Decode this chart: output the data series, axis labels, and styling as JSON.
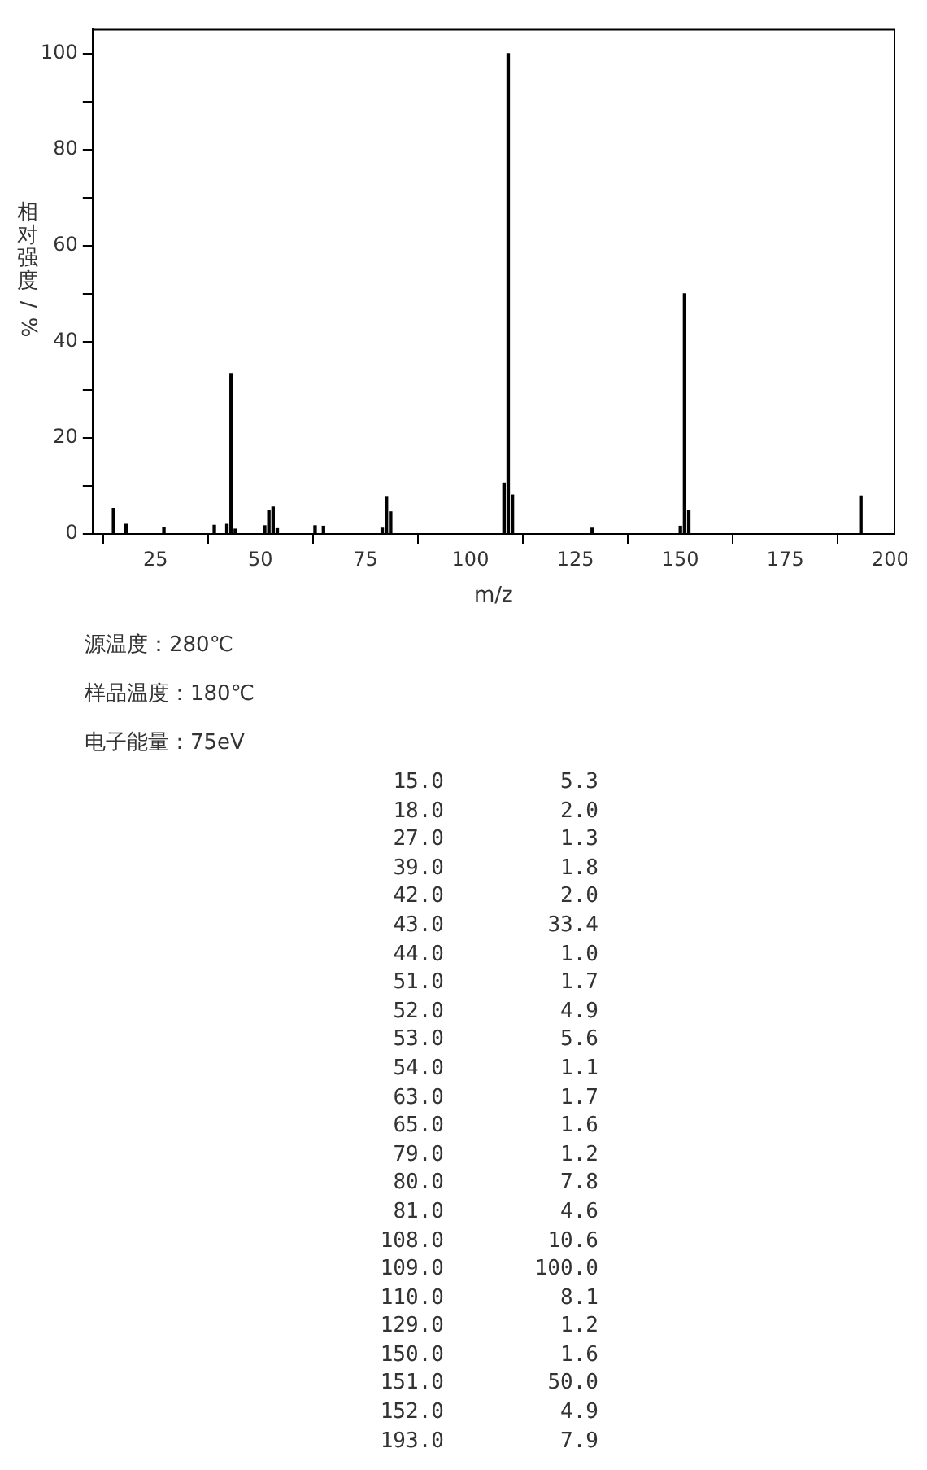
{
  "chart_data": [
    {
      "type": "bar",
      "xlabel": "m/z",
      "ylabel": "相对强度/%",
      "x": [
        15,
        18,
        27,
        39,
        42,
        43,
        44,
        51,
        52,
        53,
        54,
        63,
        65,
        79,
        80,
        81,
        108,
        109,
        110,
        129,
        150,
        151,
        152,
        193
      ],
      "values": [
        5.3,
        2.0,
        1.3,
        1.8,
        2.0,
        33.4,
        1.0,
        1.7,
        4.9,
        5.6,
        1.1,
        1.7,
        1.6,
        1.2,
        7.8,
        4.6,
        10.6,
        100.0,
        8.1,
        1.2,
        1.6,
        50.0,
        4.9,
        7.9
      ],
      "color": "#000000",
      "xlim": [
        10,
        201
      ],
      "xticks": [
        25,
        50,
        75,
        100,
        125,
        150,
        175,
        200
      ],
      "ylim": [
        0,
        105
      ],
      "yticks": [
        0,
        {
          "value": 10,
          "label": null
        },
        20,
        {
          "value": 30,
          "label": null
        },
        40,
        {
          "value": 50,
          "label": null
        },
        60,
        {
          "value": 70,
          "label": null
        },
        80,
        {
          "value": 90,
          "label": null
        },
        100
      ],
      "grid": false,
      "legend": false,
      "annotations": [
        "源温度：280℃",
        "样品温度：180℃",
        "电子能量：75eV"
      ]
    },
    {
      "type": "other",
      "annotations": [
        "15.0",
        "5.3",
        "18.0",
        "2.0",
        "27.0",
        "1.3",
        "39.0",
        "1.8",
        "42.0",
        "2.0",
        "43.0",
        "33.4",
        "44.0",
        "1.0",
        "51.0",
        "1.7",
        "52.0",
        "4.9",
        "53.0",
        "5.6",
        "54.0",
        "1.1",
        "63.0",
        "1.7",
        "65.0",
        "1.6",
        "79.0",
        "1.2",
        "80.0",
        "7.8",
        "81.0",
        "4.6",
        "108.0",
        "10.6",
        "109.0",
        "100.0",
        "110.0",
        "8.1",
        "129.0",
        "1.2",
        "150.0",
        "1.6",
        "151.0",
        "50.0",
        "152.0",
        "4.9",
        "193.0",
        "7.9"
      ]
    }
  ]
}
